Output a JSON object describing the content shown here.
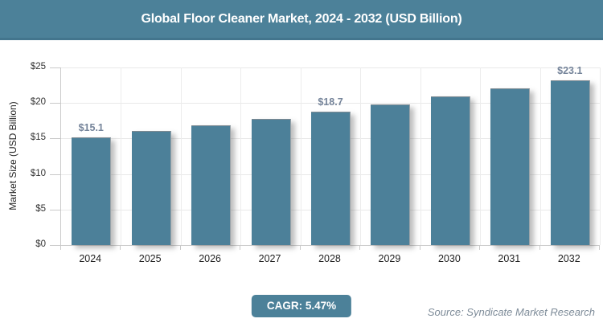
{
  "chart_data": {
    "type": "bar",
    "title": "Global Floor Cleaner Market, 2024 - 2032 (USD Billion)",
    "categories": [
      "2024",
      "2025",
      "2026",
      "2027",
      "2028",
      "2029",
      "2030",
      "2031",
      "2032"
    ],
    "values": [
      15.1,
      15.9,
      16.8,
      17.7,
      18.7,
      19.7,
      20.8,
      21.9,
      23.1
    ],
    "data_labels": [
      "$15.1",
      "",
      "",
      "",
      "$18.7",
      "",
      "",
      "",
      "$23.1"
    ],
    "xlabel": "",
    "ylabel": "Market Size (USD Billion)",
    "ylim": [
      0,
      25
    ],
    "yticks": [
      {
        "value": 0,
        "label": "$0"
      },
      {
        "value": 5,
        "label": "$5"
      },
      {
        "value": 10,
        "label": "$10"
      },
      {
        "value": 15,
        "label": "$15"
      },
      {
        "value": 20,
        "label": "$20"
      },
      {
        "value": 25,
        "label": "$25"
      }
    ],
    "grid": true,
    "legend": "none",
    "bar_color": "#4C8099"
  },
  "footer": {
    "cagr_label": "CAGR: 5.47%",
    "source": "Source: Syndicate Market Research"
  },
  "colors": {
    "accent_teal": "#4C8199",
    "bar_fill": "#4C8099",
    "data_label": "#75849A",
    "grid_line": "#e8e8e8",
    "axis_line": "#c9c9c9",
    "source_text": "#7E8C99"
  }
}
